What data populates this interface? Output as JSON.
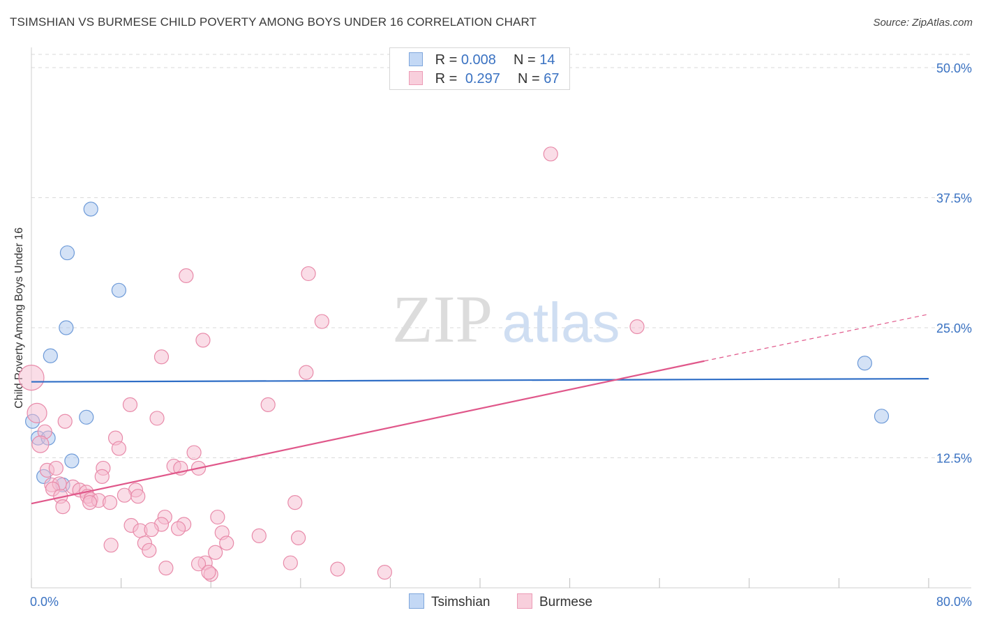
{
  "title": "TSIMSHIAN VS BURMESE CHILD POVERTY AMONG BOYS UNDER 16 CORRELATION CHART",
  "source": "Source: ZipAtlas.com",
  "watermark": {
    "zip": "ZIP",
    "atlas": "atlas"
  },
  "legend": {
    "rows": [
      {
        "r_label": "R =",
        "r_value": "0.008",
        "n_label": "N =",
        "n_value": "14"
      },
      {
        "r_label": "R =",
        "r_value": "0.297",
        "n_label": "N =",
        "n_value": "67"
      }
    ]
  },
  "chart_data": {
    "type": "scatter",
    "title": "TSIMSHIAN VS BURMESE CHILD POVERTY AMONG BOYS UNDER 16 CORRELATION CHART",
    "xlabel": "",
    "ylabel": "Child Poverty Among Boys Under 16",
    "xlim": [
      0,
      80
    ],
    "ylim": [
      0,
      50
    ],
    "x_tick_labels": [
      "0.0%",
      "80.0%"
    ],
    "y_ticks": [
      12.5,
      25.0,
      37.5,
      50.0
    ],
    "y_tick_labels": [
      "12.5%",
      "25.0%",
      "37.5%",
      "50.0%"
    ],
    "grid": true,
    "series": [
      {
        "name": "Tsimshian",
        "color": "#a9c6ee",
        "stroke": "#6d9ad8",
        "line_color": "#2f6ec6",
        "trend": {
          "x": [
            0,
            80
          ],
          "y": [
            19.8,
            20.1
          ]
        },
        "points": [
          [
            5.3,
            36.4
          ],
          [
            3.2,
            32.2
          ],
          [
            7.8,
            28.6
          ],
          [
            3.1,
            25.0
          ],
          [
            1.7,
            22.3
          ],
          [
            0.1,
            16.0
          ],
          [
            4.9,
            16.4
          ],
          [
            0.6,
            14.4
          ],
          [
            1.5,
            14.4
          ],
          [
            3.6,
            12.2
          ],
          [
            1.1,
            10.7
          ],
          [
            2.8,
            9.9
          ],
          [
            74.3,
            21.6
          ],
          [
            75.8,
            16.5
          ]
        ],
        "sizes": [
          10,
          10,
          10,
          10,
          10,
          10,
          10,
          10,
          10,
          10,
          10,
          10,
          10,
          10
        ]
      },
      {
        "name": "Burmese",
        "color": "#f5bcd0",
        "stroke": "#e88aa9",
        "line_color": "#e0578a",
        "trend": {
          "x": [
            0,
            60
          ],
          "y": [
            8.1,
            21.8
          ]
        },
        "trend_dashed": {
          "x": [
            60,
            80
          ],
          "y": [
            21.8,
            26.3
          ]
        },
        "points": [
          [
            46.3,
            41.7
          ],
          [
            13.8,
            30.0
          ],
          [
            24.7,
            30.2
          ],
          [
            25.9,
            25.6
          ],
          [
            54.0,
            25.1
          ],
          [
            15.3,
            23.8
          ],
          [
            11.6,
            22.2
          ],
          [
            24.5,
            20.7
          ],
          [
            0.0,
            20.2
          ],
          [
            8.8,
            17.6
          ],
          [
            21.1,
            17.6
          ],
          [
            0.5,
            16.8
          ],
          [
            3.0,
            16.0
          ],
          [
            11.2,
            16.3
          ],
          [
            1.2,
            15.0
          ],
          [
            0.8,
            13.8
          ],
          [
            7.5,
            14.4
          ],
          [
            7.8,
            13.4
          ],
          [
            14.5,
            13.0
          ],
          [
            1.4,
            11.3
          ],
          [
            2.2,
            11.5
          ],
          [
            6.4,
            11.5
          ],
          [
            12.7,
            11.7
          ],
          [
            13.3,
            11.5
          ],
          [
            14.9,
            11.5
          ],
          [
            1.8,
            9.9
          ],
          [
            2.5,
            10.0
          ],
          [
            3.7,
            9.7
          ],
          [
            4.3,
            9.4
          ],
          [
            4.9,
            9.2
          ],
          [
            1.9,
            9.5
          ],
          [
            6.3,
            10.7
          ],
          [
            9.3,
            9.4
          ],
          [
            5.0,
            8.8
          ],
          [
            8.3,
            8.9
          ],
          [
            9.5,
            8.8
          ],
          [
            5.3,
            8.5
          ],
          [
            6.0,
            8.4
          ],
          [
            7.0,
            8.2
          ],
          [
            2.6,
            8.8
          ],
          [
            5.2,
            8.2
          ],
          [
            2.8,
            7.8
          ],
          [
            23.5,
            8.2
          ],
          [
            11.9,
            6.8
          ],
          [
            16.6,
            6.8
          ],
          [
            8.9,
            6.0
          ],
          [
            11.6,
            6.1
          ],
          [
            13.6,
            6.1
          ],
          [
            9.7,
            5.5
          ],
          [
            10.7,
            5.6
          ],
          [
            13.1,
            5.7
          ],
          [
            17.0,
            5.3
          ],
          [
            20.3,
            5.0
          ],
          [
            23.8,
            4.8
          ],
          [
            7.1,
            4.1
          ],
          [
            10.1,
            4.3
          ],
          [
            17.4,
            4.3
          ],
          [
            10.5,
            3.6
          ],
          [
            16.4,
            3.4
          ],
          [
            15.5,
            2.4
          ],
          [
            14.9,
            2.3
          ],
          [
            23.1,
            2.4
          ],
          [
            27.3,
            1.8
          ],
          [
            31.5,
            1.5
          ],
          [
            16.0,
            1.3
          ],
          [
            15.8,
            1.5
          ],
          [
            12.0,
            1.9
          ]
        ],
        "sizes": [
          10,
          10,
          10,
          10,
          10,
          10,
          10,
          10,
          18,
          10,
          10,
          14,
          10,
          10,
          10,
          12,
          10,
          10,
          10,
          10,
          10,
          10,
          10,
          10,
          10,
          10,
          10,
          10,
          10,
          10,
          10,
          10,
          10,
          10,
          10,
          10,
          10,
          10,
          10,
          10,
          10,
          10,
          10,
          10,
          10,
          10,
          10,
          10,
          10,
          10,
          10,
          10,
          10,
          10,
          10,
          10,
          10,
          10,
          10,
          10,
          10,
          10,
          10,
          10,
          10,
          10,
          10
        ]
      }
    ]
  }
}
